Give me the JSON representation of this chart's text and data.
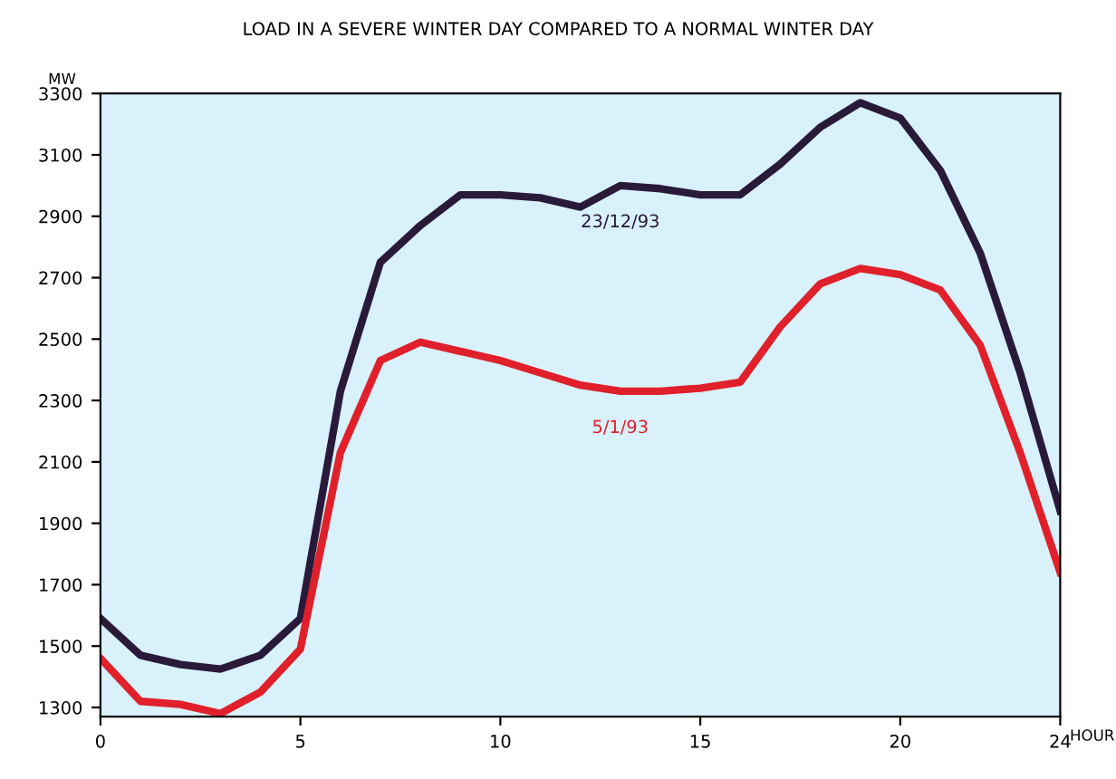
{
  "chart_data": {
    "type": "line",
    "title": "LOAD IN A SEVERE WINTER DAY COMPARED TO A NORMAL WINTER DAY",
    "ylabel": "MW",
    "xlabel": "HOUR",
    "x": [
      0,
      1,
      2,
      3,
      4,
      5,
      6,
      7,
      8,
      9,
      10,
      11,
      12,
      13,
      14,
      15,
      16,
      17,
      18,
      19,
      20,
      21,
      22,
      23,
      24
    ],
    "series": [
      {
        "name": "23/12/93",
        "color": "#2a1a3a",
        "values": [
          1590,
          1470,
          1440,
          1425,
          1470,
          1590,
          2330,
          2750,
          2870,
          2970,
          2970,
          2960,
          2930,
          3000,
          2990,
          2970,
          2970,
          3070,
          3190,
          3270,
          3220,
          3050,
          2780,
          2390,
          1940
        ]
      },
      {
        "name": "5/1/93",
        "color": "#e0202a",
        "values": [
          1460,
          1320,
          1310,
          1280,
          1350,
          1490,
          2130,
          2430,
          2490,
          2460,
          2430,
          2390,
          2350,
          2330,
          2330,
          2340,
          2360,
          2540,
          2680,
          2730,
          2710,
          2660,
          2480,
          2130,
          1740
        ]
      }
    ],
    "xlim": [
      0,
      24
    ],
    "xticks": [
      0,
      5,
      10,
      15,
      20,
      24
    ],
    "ylim": [
      1270,
      3300
    ],
    "yticks": [
      1300,
      1500,
      1700,
      1900,
      2100,
      2300,
      2500,
      2700,
      2900,
      3100,
      3300
    ],
    "grid": false,
    "legend": false,
    "marker": "none",
    "line_style": "solid"
  }
}
